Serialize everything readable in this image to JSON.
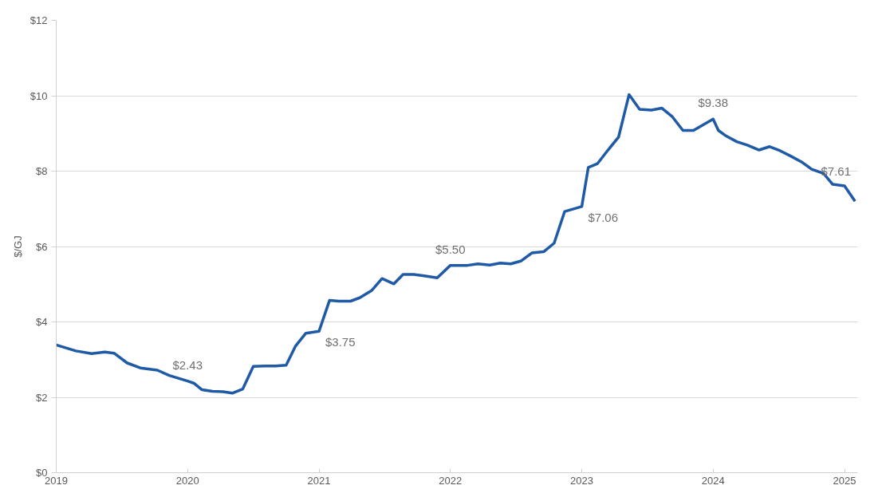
{
  "chart_data": {
    "type": "line",
    "ylabel": "$/GJ",
    "xlim": [
      2019,
      2025.1
    ],
    "xticks": [
      2019,
      2020,
      2021,
      2022,
      2023,
      2024,
      2025
    ],
    "ylim": [
      0,
      12
    ],
    "yticks": [
      {
        "value": 0,
        "label": "$0"
      },
      {
        "value": 2,
        "label": "$2"
      },
      {
        "value": 4,
        "label": "$4"
      },
      {
        "value": 6,
        "label": "$6"
      },
      {
        "value": 8,
        "label": "$8"
      },
      {
        "value": 10,
        "label": "$10"
      },
      {
        "value": 12,
        "label": "$12"
      }
    ],
    "grid": "y",
    "marker": "none",
    "line_style": "solid",
    "x": [
      2019.0,
      2019.15,
      2019.27,
      2019.37,
      2019.44,
      2019.54,
      2019.64,
      2019.77,
      2019.86,
      2020.0,
      2020.05,
      2020.11,
      2020.19,
      2020.27,
      2020.34,
      2020.42,
      2020.5,
      2020.59,
      2020.67,
      2020.75,
      2020.82,
      2020.9,
      2021.0,
      2021.08,
      2021.15,
      2021.24,
      2021.31,
      2021.4,
      2021.48,
      2021.57,
      2021.64,
      2021.72,
      2021.8,
      2021.9,
      2022.0,
      2022.05,
      2022.13,
      2022.21,
      2022.3,
      2022.38,
      2022.46,
      2022.54,
      2022.62,
      2022.71,
      2022.79,
      2022.87,
      2023.0,
      2023.05,
      2023.12,
      2023.2,
      2023.28,
      2023.36,
      2023.44,
      2023.53,
      2023.61,
      2023.69,
      2023.77,
      2023.85,
      2024.0,
      2024.04,
      2024.1,
      2024.18,
      2024.26,
      2024.35,
      2024.43,
      2024.51,
      2024.59,
      2024.67,
      2024.75,
      2024.84,
      2024.91,
      2025.0,
      2025.08
    ],
    "series": [
      {
        "color": "#1f5aa6",
        "values": [
          3.39,
          3.23,
          3.16,
          3.2,
          3.17,
          2.91,
          2.78,
          2.72,
          2.58,
          2.43,
          2.37,
          2.2,
          2.16,
          2.15,
          2.11,
          2.22,
          2.82,
          2.83,
          2.83,
          2.85,
          3.35,
          3.7,
          3.75,
          4.57,
          4.55,
          4.55,
          4.64,
          4.83,
          5.15,
          5.01,
          5.26,
          5.26,
          5.22,
          5.17,
          5.5,
          5.5,
          5.5,
          5.54,
          5.51,
          5.56,
          5.54,
          5.62,
          5.83,
          5.86,
          6.09,
          6.93,
          7.06,
          8.1,
          8.2,
          8.56,
          8.9,
          10.03,
          9.64,
          9.62,
          9.67,
          9.44,
          9.08,
          9.08,
          9.38,
          9.08,
          8.93,
          8.78,
          8.69,
          8.56,
          8.65,
          8.54,
          8.4,
          8.25,
          8.05,
          7.94,
          7.65,
          7.61,
          7.2
        ]
      }
    ],
    "annotations": [
      {
        "text": "$2.43",
        "x": 2020,
        "y": 2.43
      },
      {
        "text": "$3.75",
        "x": 2021,
        "y": 3.75
      },
      {
        "text": "$5.50",
        "x": 2022,
        "y": 5.5
      },
      {
        "text": "$7.06",
        "x": 2023,
        "y": 7.06
      },
      {
        "text": "$9.38",
        "x": 2024,
        "y": 9.38
      },
      {
        "text": "$7.61",
        "x": 2025,
        "y": 7.61
      }
    ]
  }
}
